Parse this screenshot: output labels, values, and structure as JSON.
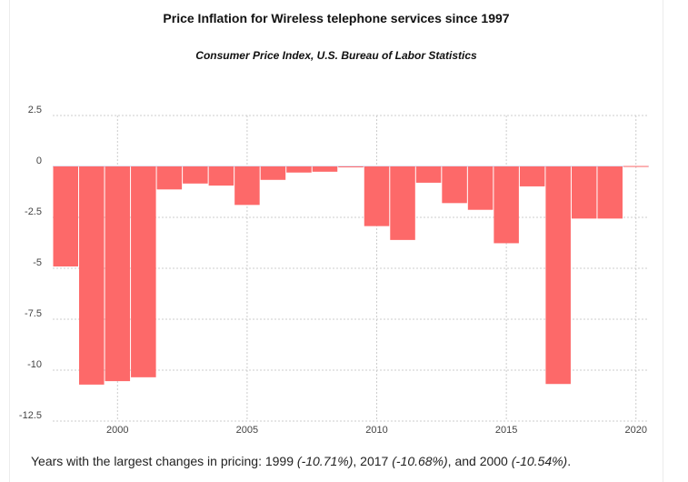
{
  "title": "Price Inflation for Wireless telephone services since 1997",
  "subtitle": "Consumer Price Index, U.S. Bureau of Labor Statistics",
  "summary": {
    "prefix": "Years with the largest changes in pricing: ",
    "item1_year": "1999",
    "item1_value": "(-10.71%)",
    "sep1": ", ",
    "item2_year": "2017",
    "item2_value": "(-10.68%)",
    "sep2": ", and ",
    "item3_year": "2000",
    "item3_value": "(-10.54%)",
    "suffix": "."
  },
  "colors": {
    "bar": "#fd6969",
    "grid": "#cccccc",
    "zero_line": "#c5c5ee",
    "tick_text": "#444444"
  },
  "chart_data": {
    "type": "bar",
    "title": "Price Inflation for Wireless telephone services since 1997",
    "subtitle": "Consumer Price Index, U.S. Bureau of Labor Statistics",
    "xlabel": "",
    "ylabel": "",
    "x": [
      1998,
      1999,
      2000,
      2001,
      2002,
      2003,
      2004,
      2005,
      2006,
      2007,
      2008,
      2009,
      2010,
      2011,
      2012,
      2013,
      2014,
      2015,
      2016,
      2017,
      2018,
      2019,
      2020
    ],
    "values": [
      -4.91,
      -10.71,
      -10.54,
      -10.35,
      -1.13,
      -0.84,
      -0.94,
      -1.89,
      -0.66,
      -0.3,
      -0.26,
      -0.02,
      -2.93,
      -3.61,
      -0.8,
      -1.8,
      -2.13,
      -3.77,
      -0.98,
      -10.68,
      -2.56,
      -2.56,
      0.02
    ],
    "ylim": [
      -12.5,
      2.5
    ],
    "xlim": [
      1997.5,
      2020.5
    ],
    "yticks": [
      2.5,
      0,
      -2.5,
      -5,
      -7.5,
      -10,
      -12.5
    ],
    "ytick_labels": [
      "2.5",
      "0",
      "-2.5",
      "-5",
      "-7.5",
      "-10",
      "-12.5"
    ],
    "xticks": [
      2000,
      2005,
      2010,
      2015,
      2020
    ],
    "xtick_labels": [
      "2000",
      "2005",
      "2010",
      "2015",
      "2020"
    ],
    "grid": true,
    "legend": "none"
  }
}
